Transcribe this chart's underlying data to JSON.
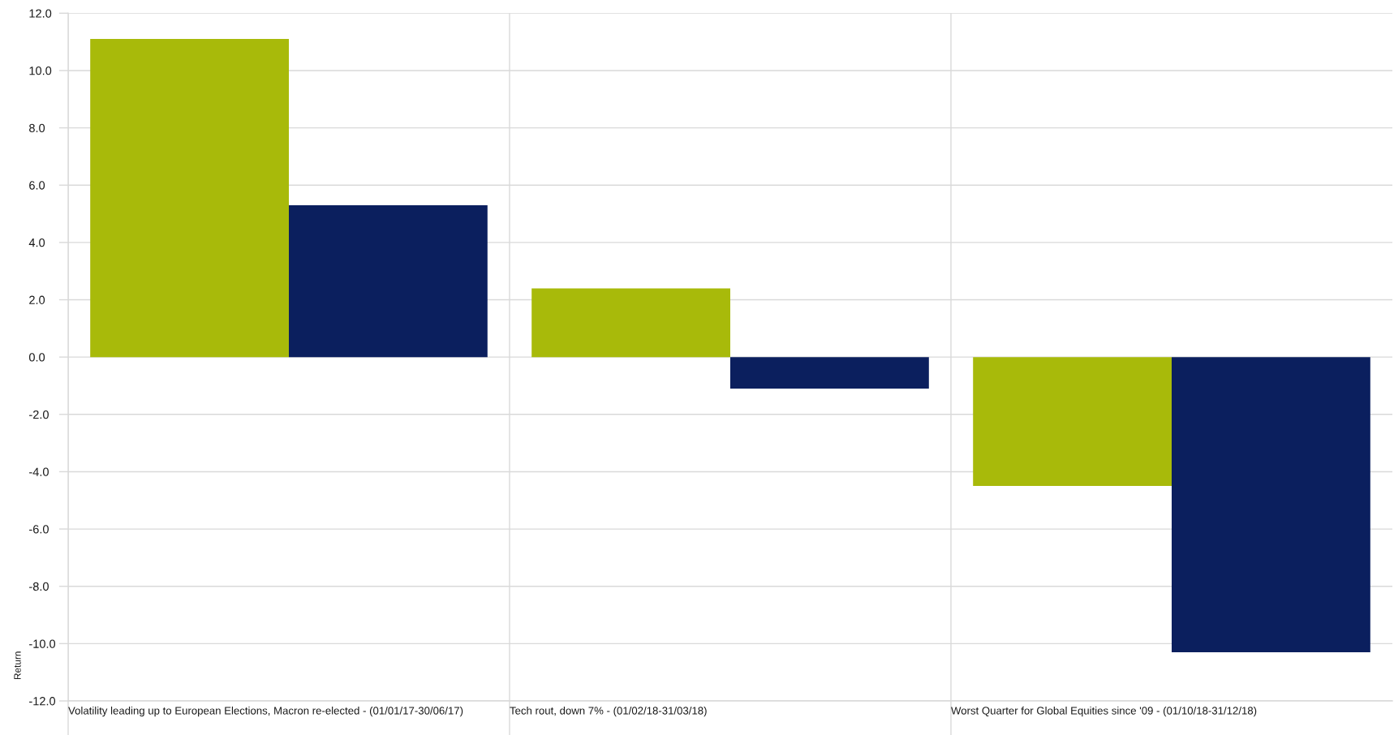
{
  "chart_data": {
    "type": "bar",
    "ylabel": "Return",
    "categories": [
      "Volatility leading up to European Elections, Macron re-elected - (01/01/17-30/06/17)",
      "Tech rout, down 7% - (01/02/18-31/03/18)",
      "Worst Quarter for Global Equities since '09 - (01/10/18-31/12/18)"
    ],
    "series": [
      {
        "color": "#a8ba0a",
        "values": [
          11.1,
          2.4,
          -4.5
        ]
      },
      {
        "color": "#0b1f5e",
        "values": [
          5.3,
          -1.1,
          -10.3
        ]
      }
    ],
    "ylim": [
      -12,
      12
    ],
    "yticks": [
      {
        "value": -12,
        "label": "-12.0"
      },
      {
        "value": -10,
        "label": "-10.0"
      },
      {
        "value": -8,
        "label": "-8.0"
      },
      {
        "value": -6,
        "label": "-6.0"
      },
      {
        "value": -4,
        "label": "-4.0"
      },
      {
        "value": -2,
        "label": "-2.0"
      },
      {
        "value": 0,
        "label": "0.0"
      },
      {
        "value": 2,
        "label": "2.0"
      },
      {
        "value": 4,
        "label": "4.0"
      },
      {
        "value": 6,
        "label": "6.0"
      },
      {
        "value": 8,
        "label": "8.0"
      },
      {
        "value": 10,
        "label": "10.0"
      },
      {
        "value": 12,
        "label": "12.0"
      }
    ],
    "grid": true
  }
}
